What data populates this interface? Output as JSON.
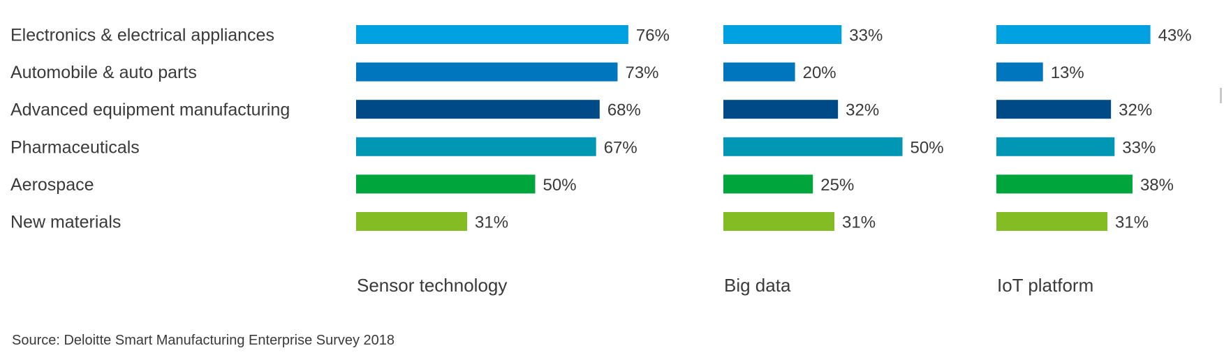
{
  "chart_data": {
    "type": "bar",
    "orientation": "horizontal",
    "layout": "small-multiples",
    "categories": [
      "Electronics & electrical appliances",
      "Automobile & auto parts",
      "Advanced equipment manufacturing",
      "Pharmaceuticals",
      "Aerospace",
      "New materials"
    ],
    "category_colors": [
      "#00a1e0",
      "#0076be",
      "#004b87",
      "#0097b5",
      "#00a53c",
      "#84bd23"
    ],
    "series": [
      {
        "name": "Sensor technology",
        "values": [
          76,
          73,
          68,
          67,
          50,
          31
        ],
        "labels": [
          "76%",
          "73%",
          "68%",
          "67%",
          "50%",
          "31%"
        ]
      },
      {
        "name": "Big data",
        "values": [
          33,
          20,
          32,
          50,
          25,
          31
        ],
        "labels": [
          "33%",
          "20%",
          "32%",
          "50%",
          "25%",
          "31%"
        ]
      },
      {
        "name": "IoT platform",
        "values": [
          43,
          13,
          32,
          33,
          38,
          31
        ],
        "labels": [
          "43%",
          "13%",
          "32%",
          "33%",
          "38%",
          "31%"
        ]
      }
    ],
    "unit": "%",
    "grid": false,
    "legend": "none"
  },
  "source": "Source: Deloitte Smart Manufacturing Enterprise Survey 2018"
}
